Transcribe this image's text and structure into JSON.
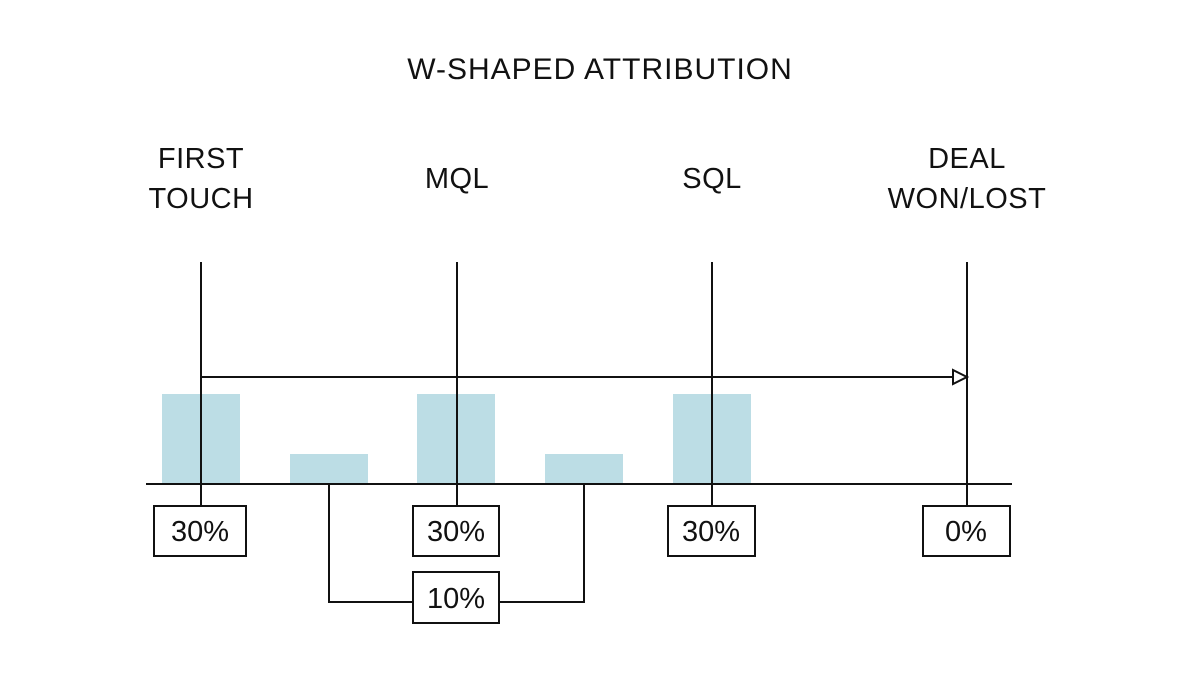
{
  "title": "W-SHAPED ATTRIBUTION",
  "colors": {
    "bar": "#bcdde5",
    "line": "#111111"
  },
  "stages": [
    {
      "id": "first-touch",
      "lines": [
        "FIRST",
        "TOUCH"
      ],
      "credit": 30,
      "credit_label": "30%"
    },
    {
      "id": "mql",
      "lines": [
        "MQL"
      ],
      "credit": 30,
      "credit_label": "30%"
    },
    {
      "id": "sql",
      "lines": [
        "SQL"
      ],
      "credit": 30,
      "credit_label": "30%"
    },
    {
      "id": "deal",
      "lines": [
        "DEAL",
        "WON/LOST"
      ],
      "credit": 0,
      "credit_label": "0%"
    }
  ],
  "between": [
    {
      "id": "between-1",
      "credit": 10
    },
    {
      "id": "between-2",
      "credit": 10
    }
  ],
  "between_label": "10%"
}
